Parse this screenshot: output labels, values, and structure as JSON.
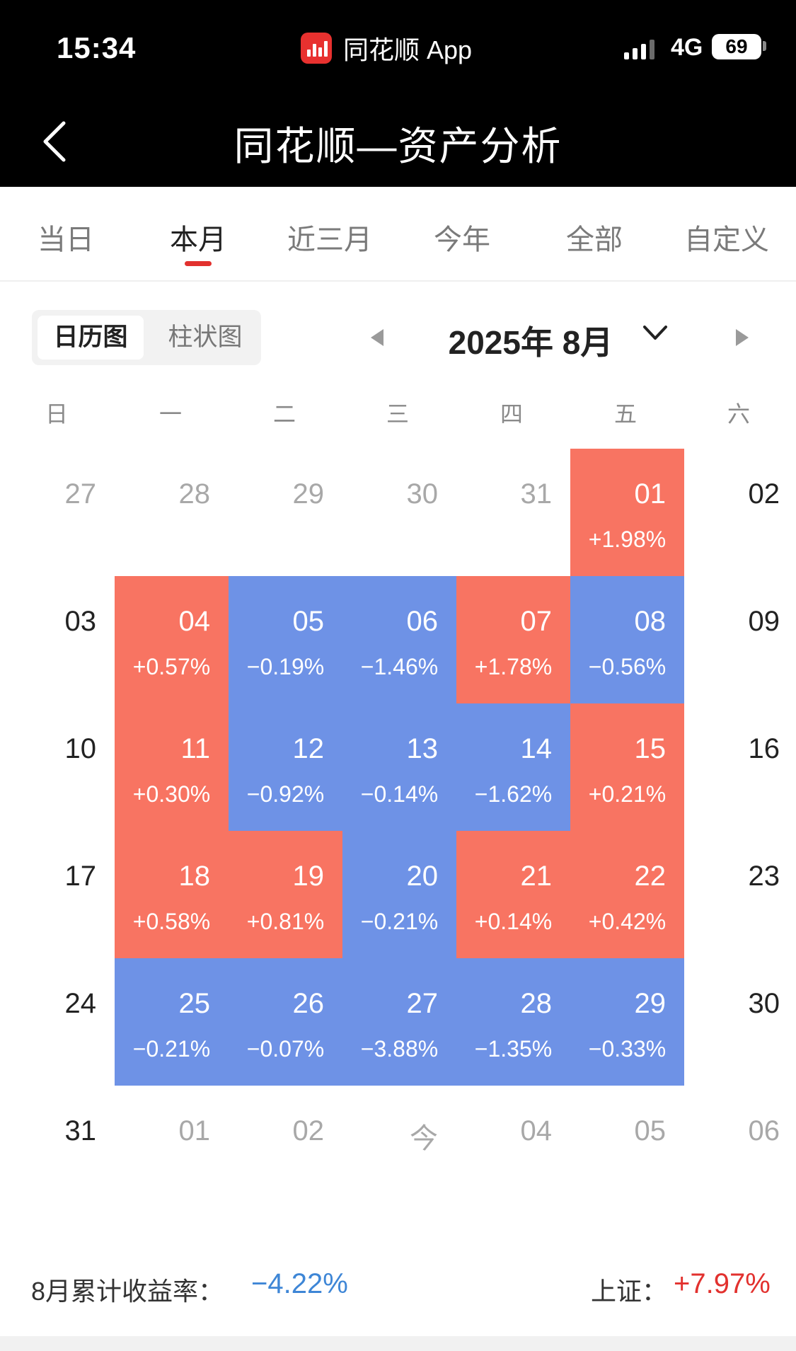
{
  "status_bar": {
    "time": "15:34",
    "app_name": "同花顺 App",
    "network": "4G",
    "battery": "69",
    "icons": [
      "signal-icon",
      "battery-icon",
      "app-logo-icon"
    ]
  },
  "nav": {
    "title": "同花顺—资产分析",
    "back_icon": "chevron-left-icon"
  },
  "tabs": [
    "当日",
    "本月",
    "近三月",
    "今年",
    "全部",
    "自定义"
  ],
  "active_tab": "本月",
  "view_toggle": {
    "calendar": "日历图",
    "bar": "柱状图",
    "selected": "日历图"
  },
  "month": {
    "label": "2025年 8月",
    "prev_icon": "triangle-left-icon",
    "next_icon": "triangle-right-icon",
    "dropdown_icon": "chevron-down-icon"
  },
  "weekdays": [
    "日",
    "一",
    "二",
    "三",
    "四",
    "五",
    "六"
  ],
  "colors": {
    "up": "#f87462",
    "down": "#6e92e6",
    "positive_text": "#e2312e",
    "negative_text": "#3e86d6"
  },
  "calendar": [
    [
      {
        "day": "27",
        "muted": true
      },
      {
        "day": "28",
        "muted": true
      },
      {
        "day": "29",
        "muted": true
      },
      {
        "day": "30",
        "muted": true
      },
      {
        "day": "31",
        "muted": true
      },
      {
        "day": "01",
        "change": "+1.98%",
        "trend": "up"
      },
      {
        "day": "02"
      }
    ],
    [
      {
        "day": "03"
      },
      {
        "day": "04",
        "change": "+0.57%",
        "trend": "up"
      },
      {
        "day": "05",
        "change": "−0.19%",
        "trend": "down"
      },
      {
        "day": "06",
        "change": "−1.46%",
        "trend": "down"
      },
      {
        "day": "07",
        "change": "+1.78%",
        "trend": "up"
      },
      {
        "day": "08",
        "change": "−0.56%",
        "trend": "down"
      },
      {
        "day": "09"
      }
    ],
    [
      {
        "day": "10"
      },
      {
        "day": "11",
        "change": "+0.30%",
        "trend": "up"
      },
      {
        "day": "12",
        "change": "−0.92%",
        "trend": "down"
      },
      {
        "day": "13",
        "change": "−0.14%",
        "trend": "down"
      },
      {
        "day": "14",
        "change": "−1.62%",
        "trend": "down"
      },
      {
        "day": "15",
        "change": "+0.21%",
        "trend": "up"
      },
      {
        "day": "16"
      }
    ],
    [
      {
        "day": "17"
      },
      {
        "day": "18",
        "change": "+0.58%",
        "trend": "up"
      },
      {
        "day": "19",
        "change": "+0.81%",
        "trend": "up"
      },
      {
        "day": "20",
        "change": "−0.21%",
        "trend": "down"
      },
      {
        "day": "21",
        "change": "+0.14%",
        "trend": "up"
      },
      {
        "day": "22",
        "change": "+0.42%",
        "trend": "up"
      },
      {
        "day": "23"
      }
    ],
    [
      {
        "day": "24"
      },
      {
        "day": "25",
        "change": "−0.21%",
        "trend": "down"
      },
      {
        "day": "26",
        "change": "−0.07%",
        "trend": "down"
      },
      {
        "day": "27",
        "change": "−3.88%",
        "trend": "down"
      },
      {
        "day": "28",
        "change": "−1.35%",
        "trend": "down"
      },
      {
        "day": "29",
        "change": "−0.33%",
        "trend": "down"
      },
      {
        "day": "30"
      }
    ],
    [
      {
        "day": "31"
      },
      {
        "day": "01",
        "muted": true
      },
      {
        "day": "02",
        "muted": true
      },
      {
        "day": "今",
        "muted": true
      },
      {
        "day": "04",
        "muted": true
      },
      {
        "day": "05",
        "muted": true
      },
      {
        "day": "06",
        "muted": true
      }
    ]
  ],
  "summary": {
    "cumulative_label": "8月累计收益率：",
    "cumulative_value": "−4.22%",
    "index_label": "上证：",
    "index_value": "+7.97%"
  }
}
